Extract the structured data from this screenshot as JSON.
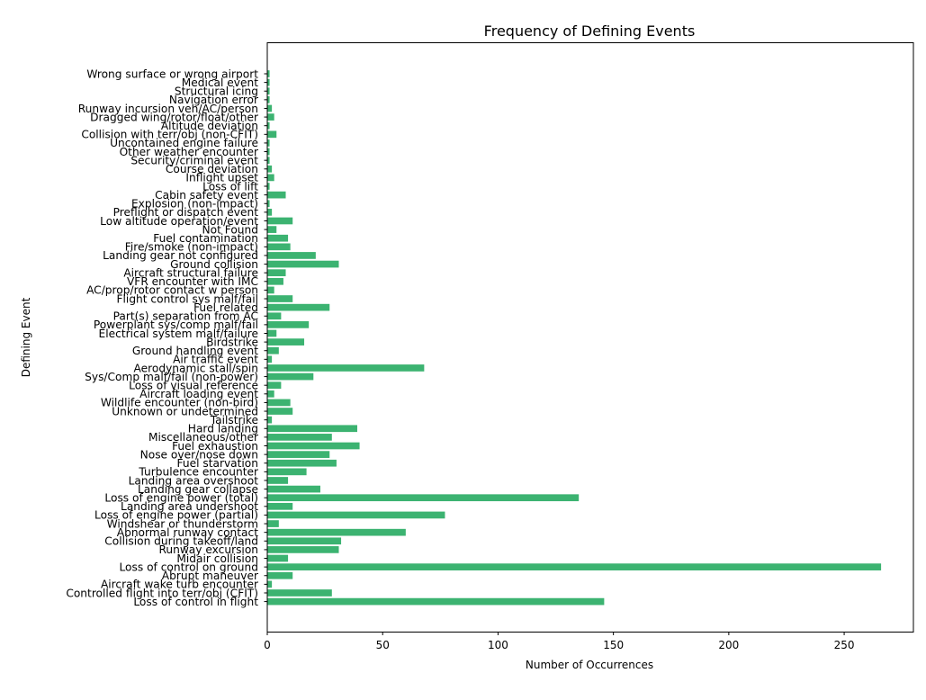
{
  "chart_data": {
    "type": "bar",
    "orientation": "horizontal",
    "title": "Frequency of Defining Events",
    "xlabel": "Number of Occurrences",
    "ylabel": "Defining Event",
    "xlim": [
      0,
      280
    ],
    "xticks": [
      0,
      50,
      100,
      150,
      200,
      250
    ],
    "grid": false,
    "bar_color": "#3cb371",
    "categories": [
      "Loss of control in flight",
      "Controlled flight into terr/obj (CFIT)",
      "Aircraft wake turb encounter",
      "Abrupt maneuver",
      "Loss of control on ground",
      "Midair collision",
      "Runway excursion",
      "Collision during takeoff/land",
      "Abnormal runway contact",
      "Windshear or thunderstorm",
      "Loss of engine power (partial)",
      "Landing area undershoot",
      "Loss of engine power (total)",
      "Landing gear collapse",
      "Landing area overshoot",
      "Turbulence encounter",
      "Fuel starvation",
      "Nose over/nose down",
      "Fuel exhaustion",
      "Miscellaneous/other",
      "Hard landing",
      "Tailstrike",
      "Unknown or undetermined",
      "Wildlife encounter (non-bird)",
      "Aircraft loading event",
      "Loss of visual reference",
      "Sys/Comp malf/fail (non-power)",
      "Aerodynamic stall/spin",
      "Air traffic event",
      "Ground handling event",
      "Birdstrike",
      "Electrical system malf/failure",
      "Powerplant sys/comp malf/fail",
      "Part(s) separation from AC",
      "Fuel related",
      "Flight control sys malf/fail",
      "AC/prop/rotor contact w person",
      "VFR encounter with IMC",
      "Aircraft structural failure",
      "Ground collision",
      "Landing gear not configured",
      "Fire/smoke (non-impact)",
      "Fuel contamination",
      "Not Found",
      "Low altitude operation/event",
      "Preflight or dispatch event",
      "Explosion (non-impact)",
      "Cabin safety event",
      "Loss of lift",
      "Inflight upset",
      "Course deviation",
      "Security/criminal event",
      "Other weather encounter",
      "Uncontained engine failure",
      "Collision with terr/obj (non-CFIT)",
      "Altitude deviation",
      "Dragged wing/rotor/float/other",
      "Runway incursion veh/AC/person",
      "Navigation error",
      "Structural icing",
      "Medical event",
      "Wrong surface or wrong airport"
    ],
    "values": [
      146,
      28,
      2,
      11,
      266,
      9,
      31,
      32,
      60,
      5,
      77,
      11,
      135,
      23,
      9,
      17,
      30,
      27,
      40,
      28,
      39,
      2,
      11,
      10,
      3,
      6,
      20,
      68,
      2,
      5,
      16,
      4,
      18,
      6,
      27,
      11,
      3,
      7,
      8,
      31,
      21,
      10,
      9,
      4,
      11,
      2,
      1,
      8,
      1,
      3,
      2,
      1,
      1,
      1,
      4,
      1,
      3,
      2,
      1,
      1,
      1,
      1
    ]
  }
}
